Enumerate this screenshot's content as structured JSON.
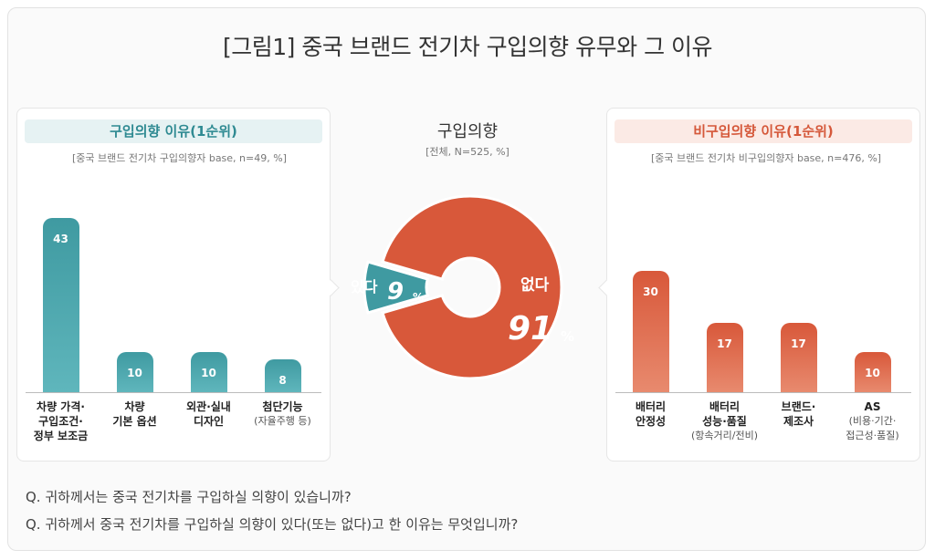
{
  "title": "[그림1] 중국 브랜드 전기차 구입의향 유무와 그 이유",
  "center": {
    "title": "구입의향",
    "base": "[전체, N=525, %]"
  },
  "left_panel": {
    "heading": "구입의향 이유(1순위)",
    "base": "[중국 브랜드 전기차  구입의향자 base, n=49, %]"
  },
  "right_panel": {
    "heading": "비구입의향 이유(1순위)",
    "base": "[중국 브랜드 전기차 비구입의향자 base, n=476, %]"
  },
  "questions": [
    "Q. 귀하께서는 중국 전기차를 구입하실 의향이 있습니까?",
    "Q. 귀하께서 중국 전기차를 구입하실 의향이 있다(또는 없다)고 한 이유는 무엇입니까?"
  ],
  "colors": {
    "teal": "#3f9aa1",
    "teal_light": "#5fb6bc",
    "orange": "#d8583a",
    "orange_light": "#e88a6e"
  },
  "chart_data": [
    {
      "type": "pie",
      "title": "구입의향",
      "subtitle": "[전체, N=525, %]",
      "labels": [
        "있다",
        "없다"
      ],
      "values": [
        9,
        91
      ],
      "unit": "%"
    },
    {
      "type": "bar",
      "title": "구입의향 이유(1순위)",
      "subtitle": "[중국 브랜드 전기차  구입의향자 base, n=49, %]",
      "categories": [
        {
          "lines": [
            "차량 가격·",
            "구입조건·",
            "정부 보조금"
          ],
          "sub": ""
        },
        {
          "lines": [
            "차량",
            "기본 옵션"
          ],
          "sub": ""
        },
        {
          "lines": [
            "외관·실내",
            "디자인"
          ],
          "sub": ""
        },
        {
          "lines": [
            "첨단기능"
          ],
          "sub": "(자율주행 등)"
        }
      ],
      "values": [
        43,
        10,
        10,
        8
      ],
      "ylim": [
        0,
        45
      ]
    },
    {
      "type": "bar",
      "title": "비구입의향 이유(1순위)",
      "subtitle": "[중국 브랜드 전기차 비구입의향자 base, n=476, %]",
      "categories": [
        {
          "lines": [
            "배터리",
            "안정성"
          ],
          "sub": ""
        },
        {
          "lines": [
            "배터리",
            "성능·품질"
          ],
          "sub": "(항속거리/전비)"
        },
        {
          "lines": [
            "브랜드·",
            "제조사"
          ],
          "sub": ""
        },
        {
          "lines": [
            "AS"
          ],
          "sub": "(비용·기간·\n접근성·품질)"
        }
      ],
      "values": [
        30,
        17,
        17,
        10
      ],
      "ylim": [
        0,
        45
      ]
    }
  ]
}
